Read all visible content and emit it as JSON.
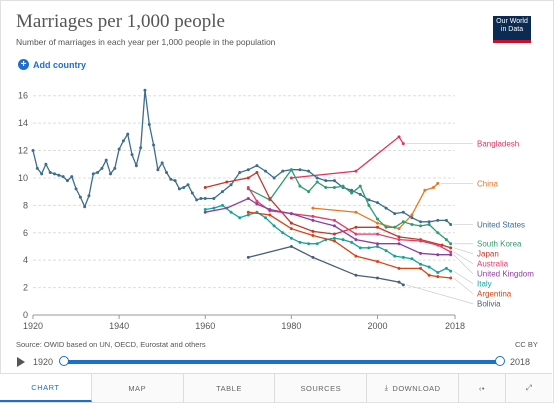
{
  "header": {
    "title": "Marriages per 1,000 people",
    "subtitle": "Number of marriages in each year per 1,000 people in the population",
    "logo_line1": "Our World",
    "logo_line2": "in Data",
    "add_country": "Add country"
  },
  "footer": {
    "source": "Source: OWID based on UN, OECD, Eurostat and others",
    "license": "CC BY",
    "year_start": "1920",
    "year_end": "2018"
  },
  "tabs": {
    "chart": "CHART",
    "map": "MAP",
    "table": "TABLE",
    "sources": "SOURCES",
    "download": "DOWNLOAD"
  },
  "icons": {
    "play": "play-icon",
    "download": "download-icon",
    "share": "share-icon",
    "fullscreen": "fullscreen-icon",
    "add": "plus-circle-icon"
  },
  "chart_data": {
    "type": "line",
    "xlim": [
      1920,
      2018
    ],
    "ylim": [
      0,
      17
    ],
    "xticks": [
      1920,
      1940,
      1960,
      1980,
      2000,
      2018
    ],
    "yticks": [
      0,
      2,
      4,
      6,
      8,
      10,
      12,
      14,
      16
    ],
    "grid": "horizontal dashed",
    "legend": "right, labels at line ends",
    "series": [
      {
        "name": "Bangladesh",
        "color": "#e0345a",
        "x": [
          1980,
          1995,
          2005,
          2006
        ],
        "y": [
          10.0,
          10.5,
          13.0,
          12.5
        ]
      },
      {
        "name": "China",
        "color": "#e6781f",
        "x": [
          1985,
          1995,
          2000,
          2005,
          2008,
          2011,
          2013,
          2014
        ],
        "y": [
          7.8,
          7.5,
          6.7,
          6.3,
          7.3,
          9.1,
          9.3,
          9.6
        ]
      },
      {
        "name": "United States",
        "color": "#3d6d8f",
        "x": [
          1920,
          1921,
          1922,
          1923,
          1924,
          1925,
          1926,
          1927,
          1928,
          1929,
          1930,
          1931,
          1932,
          1933,
          1934,
          1935,
          1936,
          1937,
          1938,
          1939,
          1940,
          1941,
          1942,
          1943,
          1944,
          1945,
          1946,
          1947,
          1948,
          1949,
          1950,
          1951,
          1952,
          1953,
          1954,
          1955,
          1956,
          1957,
          1958,
          1959,
          1960,
          1962,
          1964,
          1966,
          1968,
          1970,
          1972,
          1974,
          1976,
          1978,
          1980,
          1982,
          1984,
          1986,
          1988,
          1990,
          1992,
          1994,
          1996,
          1998,
          2000,
          2002,
          2004,
          2006,
          2008,
          2010,
          2012,
          2014,
          2016,
          2017
        ],
        "y": [
          12.0,
          10.7,
          10.3,
          11.0,
          10.4,
          10.3,
          10.2,
          10.1,
          9.8,
          10.1,
          9.2,
          8.6,
          7.9,
          8.7,
          10.3,
          10.4,
          10.7,
          11.3,
          10.3,
          10.7,
          12.1,
          12.7,
          13.2,
          11.7,
          10.9,
          12.2,
          16.4,
          13.9,
          12.4,
          10.6,
          11.1,
          10.4,
          9.9,
          9.8,
          9.2,
          9.3,
          9.5,
          8.9,
          8.4,
          8.5,
          8.5,
          8.5,
          9.0,
          9.5,
          10.4,
          10.6,
          10.9,
          10.5,
          10.0,
          10.5,
          10.6,
          10.6,
          10.5,
          10.0,
          9.8,
          9.8,
          9.3,
          9.1,
          8.8,
          8.4,
          8.2,
          7.8,
          7.4,
          7.5,
          7.1,
          6.8,
          6.8,
          6.9,
          6.9,
          6.6
        ]
      },
      {
        "name": "South Korea",
        "color": "#2e9c6e",
        "x": [
          1970,
          1975,
          1980,
          1982,
          1984,
          1986,
          1988,
          1990,
          1992,
          1994,
          1996,
          1998,
          2000,
          2002,
          2004,
          2006,
          2008,
          2010,
          2012,
          2014,
          2016,
          2017
        ],
        "y": [
          9.2,
          8.4,
          10.6,
          9.4,
          9.0,
          9.7,
          9.3,
          9.3,
          9.4,
          8.9,
          9.4,
          8.0,
          7.0,
          6.4,
          6.4,
          6.8,
          6.6,
          6.5,
          6.6,
          6.0,
          5.5,
          5.2
        ]
      },
      {
        "name": "Japan",
        "color": "#c0392b",
        "x": [
          1960,
          1965,
          1970,
          1972,
          1975,
          1980,
          1985,
          1990,
          1995,
          2000,
          2005,
          2010,
          2015,
          2017
        ],
        "y": [
          9.3,
          9.7,
          10.0,
          10.4,
          8.5,
          6.7,
          6.1,
          5.9,
          6.4,
          6.4,
          5.7,
          5.5,
          5.1,
          4.9
        ]
      },
      {
        "name": "Australia",
        "color": "#e33c6b",
        "x": [
          1970,
          1972,
          1975,
          1980,
          1985,
          1990,
          1995,
          2000,
          2005,
          2010,
          2014,
          2017
        ],
        "y": [
          9.3,
          8.3,
          7.6,
          7.4,
          7.2,
          6.9,
          5.9,
          5.9,
          5.5,
          5.4,
          5.1,
          4.6
        ]
      },
      {
        "name": "United Kingdom",
        "color": "#8e3ea1",
        "x": [
          1960,
          1965,
          1970,
          1972,
          1975,
          1980,
          1985,
          1990,
          1995,
          2000,
          2005,
          2010,
          2014,
          2017
        ],
        "y": [
          7.5,
          7.8,
          8.5,
          8.1,
          7.7,
          7.4,
          6.9,
          6.5,
          5.5,
          5.2,
          5.2,
          4.5,
          4.4,
          4.4
        ]
      },
      {
        "name": "Italy",
        "color": "#17a39a",
        "x": [
          1960,
          1962,
          1964,
          1966,
          1968,
          1970,
          1972,
          1974,
          1976,
          1978,
          1980,
          1982,
          1984,
          1986,
          1988,
          1990,
          1992,
          1994,
          1996,
          1998,
          2000,
          2002,
          2004,
          2006,
          2008,
          2010,
          2012,
          2014,
          2016,
          2017
        ],
        "y": [
          7.7,
          7.8,
          8.0,
          7.5,
          7.1,
          7.3,
          7.5,
          7.1,
          6.5,
          6.0,
          5.6,
          5.3,
          5.2,
          5.2,
          5.5,
          5.6,
          5.5,
          5.3,
          4.9,
          4.9,
          5.0,
          4.7,
          4.3,
          4.2,
          4.1,
          3.7,
          3.5,
          3.1,
          3.4,
          3.2
        ]
      },
      {
        "name": "Argentina",
        "color": "#d84315",
        "x": [
          1970,
          1975,
          1980,
          1985,
          1990,
          1995,
          2000,
          2005,
          2010,
          2012,
          2014,
          2017
        ],
        "y": [
          7.5,
          7.3,
          6.3,
          5.8,
          5.4,
          4.3,
          3.9,
          3.4,
          3.4,
          2.9,
          2.8,
          2.7
        ]
      },
      {
        "name": "Bolivia",
        "color": "#4a5f7a",
        "x": [
          1970,
          1980,
          1985,
          1995,
          2000,
          2005,
          2006
        ],
        "y": [
          4.2,
          5.0,
          4.2,
          2.9,
          2.7,
          2.4,
          2.2
        ]
      }
    ]
  }
}
